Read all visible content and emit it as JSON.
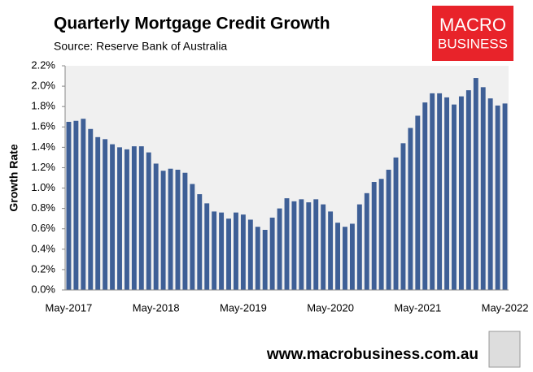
{
  "chart_data": {
    "type": "bar",
    "title": "Quarterly Mortgage Credit Growth",
    "subtitle": "Source: Reserve Bank of Australia",
    "y_label": "Growth Rate",
    "categories": [
      "May-2017",
      null,
      null,
      null,
      null,
      null,
      null,
      null,
      null,
      null,
      null,
      null,
      "May-2018",
      null,
      null,
      null,
      null,
      null,
      null,
      null,
      null,
      null,
      null,
      null,
      "May-2019",
      null,
      null,
      null,
      null,
      null,
      null,
      null,
      null,
      null,
      null,
      null,
      "May-2020",
      null,
      null,
      null,
      null,
      null,
      null,
      null,
      null,
      null,
      null,
      null,
      "May-2021",
      null,
      null,
      null,
      null,
      null,
      null,
      null,
      null,
      null,
      null,
      null,
      "May-2022"
    ],
    "values": [
      1.65,
      1.66,
      1.68,
      1.58,
      1.5,
      1.48,
      1.43,
      1.4,
      1.38,
      1.41,
      1.41,
      1.35,
      1.24,
      1.17,
      1.19,
      1.18,
      1.15,
      1.04,
      0.94,
      0.85,
      0.77,
      0.76,
      0.7,
      0.76,
      0.74,
      0.69,
      0.62,
      0.59,
      0.71,
      0.8,
      0.9,
      0.87,
      0.89,
      0.86,
      0.89,
      0.84,
      0.77,
      0.66,
      0.62,
      0.65,
      0.84,
      0.95,
      1.06,
      1.09,
      1.18,
      1.3,
      1.44,
      1.59,
      1.71,
      1.84,
      1.93,
      1.93,
      1.89,
      1.82,
      1.9,
      1.96,
      2.08,
      1.99,
      1.88,
      1.81,
      1.83
    ],
    "color": "#3e5f96",
    "ylim": [
      0,
      2.2
    ],
    "yticks": [
      {
        "value": 0,
        "label": "0.0%"
      },
      {
        "value": 0.2,
        "label": "0.2%"
      },
      {
        "value": 0.4,
        "label": "0.4%"
      },
      {
        "value": 0.6,
        "label": "0.6%"
      },
      {
        "value": 0.8,
        "label": "0.8%"
      },
      {
        "value": 1.0,
        "label": "1.0%"
      },
      {
        "value": 1.2,
        "label": "1.2%"
      },
      {
        "value": 1.4,
        "label": "1.4%"
      },
      {
        "value": 1.6,
        "label": "1.6%"
      },
      {
        "value": 1.8,
        "label": "1.8%"
      },
      {
        "value": 2.0,
        "label": "2.0%"
      },
      {
        "value": 2.2,
        "label": "2.2%"
      }
    ],
    "grid": false
  },
  "logo": {
    "line1": "MACRO",
    "line2": "BUSINESS"
  },
  "footer": "www.macrobusiness.com.au"
}
